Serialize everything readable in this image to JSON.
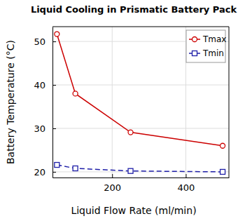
{
  "chart_data": {
    "type": "line",
    "title": "Liquid Cooling in Prismatic Battery Pack",
    "x_label": "Liquid Flow Rate (ml/min)",
    "y_label": "Battery Temperature (°C)",
    "x": [
      50,
      100,
      250,
      500
    ],
    "series": [
      {
        "name": "Tmax",
        "color": "#cc0000",
        "marker": "circle",
        "line_style": "solid",
        "values": [
          51.7,
          38.0,
          29.1,
          26.0
        ]
      },
      {
        "name": "Tmin",
        "color": "#1f1fa8",
        "marker": "square",
        "line_style": "dashed",
        "values": [
          21.6,
          20.8,
          20.2,
          20.0
        ]
      }
    ],
    "xlim": [
      38,
      517
    ],
    "xticks": [
      200,
      400
    ],
    "ylim": [
      18.7,
      53.4
    ],
    "yticks": [
      20,
      30,
      40,
      50
    ],
    "grid": true,
    "legend": "upper right"
  }
}
